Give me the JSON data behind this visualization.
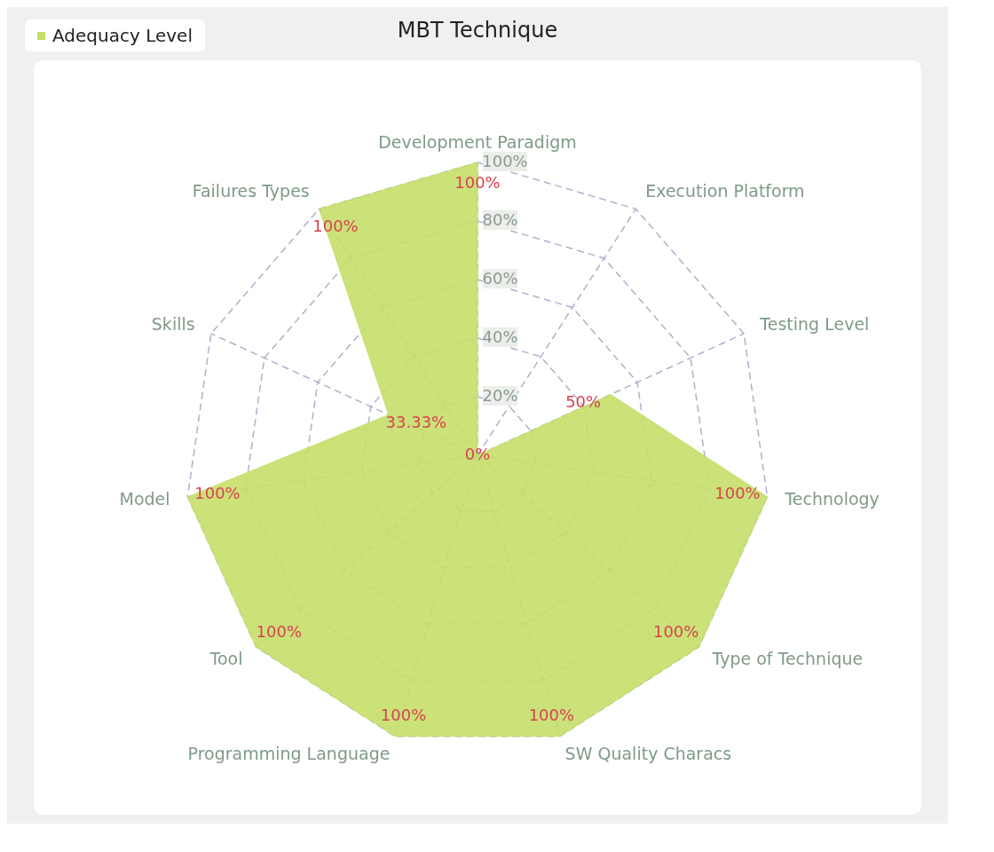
{
  "chart_data": {
    "type": "radar",
    "title": "MBT Technique",
    "categories": [
      "Development Paradigm",
      "Execution Platform",
      "Testing Level",
      "Technology",
      "Type of Technique",
      "SW Quality Characs",
      "Programming Language",
      "Tool",
      "Model",
      "Skills",
      "Failures Types"
    ],
    "series": [
      {
        "name": "Adequacy Level",
        "color": "#c5df6a",
        "values": [
          100,
          0,
          50,
          100,
          100,
          100,
          100,
          100,
          100,
          33.33,
          100
        ],
        "value_labels": [
          "100%",
          "0%",
          "50%",
          "100%",
          "100%",
          "100%",
          "100%",
          "100%",
          "100%",
          "33.33%",
          "100%"
        ]
      }
    ],
    "ylim": [
      0,
      100
    ],
    "yticks": [
      {
        "value": 20,
        "label": "20%"
      },
      {
        "value": 40,
        "label": "40%"
      },
      {
        "value": 60,
        "label": "60%"
      },
      {
        "value": 80,
        "label": "80%"
      },
      {
        "value": 100,
        "label": "100%"
      }
    ],
    "grid": true,
    "legend": "top left",
    "marker": "none",
    "line_style": "solid"
  }
}
